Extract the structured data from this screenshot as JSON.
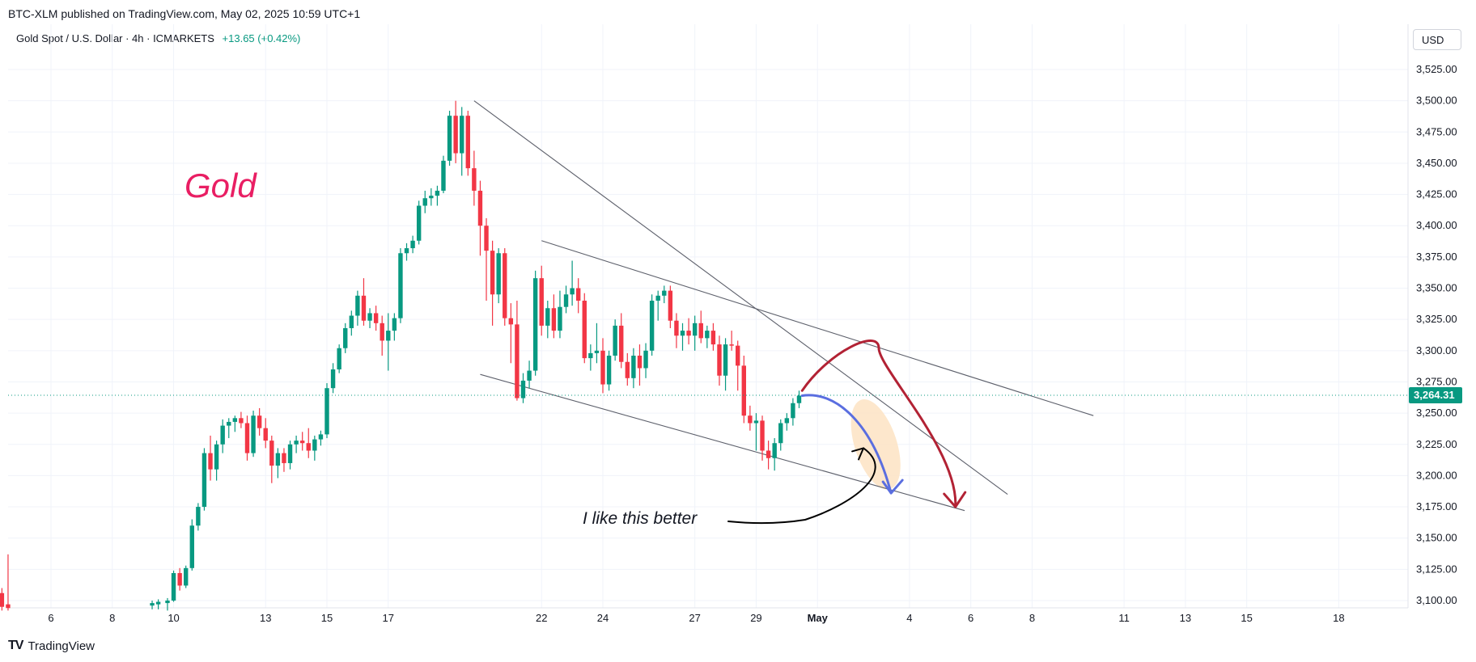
{
  "header": {
    "publisher": "BTC-XLM published on TradingView.com, May 02, 2025 10:59 UTC+1"
  },
  "legend": {
    "symbol": "Gold Spot / U.S. Dollar · 4h · ICMARKETS",
    "change": "+13.65 (+0.42%)"
  },
  "currency_button": "USD",
  "brand": {
    "logo": "TV",
    "name": "TradingView"
  },
  "colors": {
    "up": "#089981",
    "down": "#f23645",
    "trendline": "#5d606b",
    "gold_text": "#e91e63",
    "blue_arrow": "#5a6ee0",
    "red_arrow": "#b22234",
    "highlight": "#fde3c3"
  },
  "annotations": {
    "gold": "Gold",
    "note": "I like this better"
  },
  "chart_data": {
    "type": "candlestick",
    "timeframe": "4h",
    "last_price": 3264.31,
    "last_price_label": "3,264.31",
    "y_ticks": [
      "3,525.00",
      "3,500.00",
      "3,475.00",
      "3,450.00",
      "3,425.00",
      "3,400.00",
      "3,375.00",
      "3,350.00",
      "3,325.00",
      "3,300.00",
      "3,275.00",
      "3,250.00",
      "3,225.00",
      "3,200.00",
      "3,175.00",
      "3,150.00",
      "3,125.00",
      "3,100.00"
    ],
    "y_tick_values": [
      3525,
      3500,
      3475,
      3450,
      3425,
      3400,
      3375,
      3350,
      3325,
      3300,
      3275,
      3250,
      3225,
      3200,
      3175,
      3150,
      3125,
      3100
    ],
    "ylim": [
      3093,
      3538
    ],
    "x_ticks": [
      {
        "label": "6",
        "day": 6
      },
      {
        "label": "8",
        "day": 8
      },
      {
        "label": "10",
        "day": 10
      },
      {
        "label": "13",
        "day": 13
      },
      {
        "label": "15",
        "day": 15
      },
      {
        "label": "17",
        "day": 17
      },
      {
        "label": "22",
        "day": 22
      },
      {
        "label": "24",
        "day": 24
      },
      {
        "label": "27",
        "day": 27
      },
      {
        "label": "29",
        "day": 29
      },
      {
        "label": "May",
        "day": 31
      },
      {
        "label": "4",
        "day": 34
      },
      {
        "label": "6",
        "day": 36
      },
      {
        "label": "8",
        "day": 38
      },
      {
        "label": "11",
        "day": 41
      },
      {
        "label": "13",
        "day": 43
      },
      {
        "label": "15",
        "day": 45
      },
      {
        "label": "18",
        "day": 48
      }
    ],
    "candles": [
      {
        "day": 4.0,
        "o": 3108,
        "h": 3112,
        "l": 3098,
        "c": 3104
      },
      {
        "day": 4.2,
        "o": 3104,
        "h": 3109,
        "l": 3098,
        "c": 3106
      },
      {
        "day": 4.4,
        "o": 3106,
        "h": 3110,
        "l": 3092,
        "c": 3095
      },
      {
        "day": 4.6,
        "o": 3097,
        "h": 3137,
        "l": 3092,
        "c": 3094
      },
      {
        "day": 9.3,
        "o": 3096,
        "h": 3100,
        "l": 3093,
        "c": 3098
      },
      {
        "day": 9.5,
        "o": 3097,
        "h": 3101,
        "l": 3093,
        "c": 3099
      },
      {
        "day": 9.8,
        "o": 3098,
        "h": 3102,
        "l": 3092,
        "c": 3100
      },
      {
        "day": 10.0,
        "o": 3100,
        "h": 3124,
        "l": 3099,
        "c": 3122
      },
      {
        "day": 10.2,
        "o": 3122,
        "h": 3126,
        "l": 3108,
        "c": 3112
      },
      {
        "day": 10.4,
        "o": 3112,
        "h": 3128,
        "l": 3110,
        "c": 3126
      },
      {
        "day": 10.6,
        "o": 3126,
        "h": 3165,
        "l": 3124,
        "c": 3160
      },
      {
        "day": 10.8,
        "o": 3160,
        "h": 3178,
        "l": 3156,
        "c": 3175
      },
      {
        "day": 11.0,
        "o": 3175,
        "h": 3222,
        "l": 3172,
        "c": 3218
      },
      {
        "day": 11.2,
        "o": 3218,
        "h": 3232,
        "l": 3196,
        "c": 3205
      },
      {
        "day": 11.4,
        "o": 3205,
        "h": 3228,
        "l": 3196,
        "c": 3225
      },
      {
        "day": 11.6,
        "o": 3225,
        "h": 3245,
        "l": 3218,
        "c": 3240
      },
      {
        "day": 11.8,
        "o": 3240,
        "h": 3246,
        "l": 3230,
        "c": 3243
      },
      {
        "day": 12.0,
        "o": 3243,
        "h": 3248,
        "l": 3235,
        "c": 3246
      },
      {
        "day": 12.2,
        "o": 3246,
        "h": 3251,
        "l": 3238,
        "c": 3242
      },
      {
        "day": 12.4,
        "o": 3242,
        "h": 3248,
        "l": 3212,
        "c": 3218
      },
      {
        "day": 12.6,
        "o": 3218,
        "h": 3252,
        "l": 3215,
        "c": 3248
      },
      {
        "day": 12.8,
        "o": 3248,
        "h": 3254,
        "l": 3232,
        "c": 3238
      },
      {
        "day": 13.0,
        "o": 3238,
        "h": 3246,
        "l": 3222,
        "c": 3228
      },
      {
        "day": 13.2,
        "o": 3228,
        "h": 3232,
        "l": 3194,
        "c": 3208
      },
      {
        "day": 13.4,
        "o": 3208,
        "h": 3222,
        "l": 3198,
        "c": 3218
      },
      {
        "day": 13.6,
        "o": 3218,
        "h": 3222,
        "l": 3203,
        "c": 3210
      },
      {
        "day": 13.8,
        "o": 3210,
        "h": 3228,
        "l": 3205,
        "c": 3225
      },
      {
        "day": 14.0,
        "o": 3225,
        "h": 3232,
        "l": 3218,
        "c": 3228
      },
      {
        "day": 14.2,
        "o": 3228,
        "h": 3235,
        "l": 3220,
        "c": 3226
      },
      {
        "day": 14.4,
        "o": 3226,
        "h": 3238,
        "l": 3214,
        "c": 3220
      },
      {
        "day": 14.6,
        "o": 3220,
        "h": 3232,
        "l": 3212,
        "c": 3229
      },
      {
        "day": 14.8,
        "o": 3229,
        "h": 3236,
        "l": 3224,
        "c": 3233
      },
      {
        "day": 15.0,
        "o": 3233,
        "h": 3274,
        "l": 3230,
        "c": 3270
      },
      {
        "day": 15.2,
        "o": 3270,
        "h": 3290,
        "l": 3266,
        "c": 3285
      },
      {
        "day": 15.4,
        "o": 3285,
        "h": 3305,
        "l": 3282,
        "c": 3302
      },
      {
        "day": 15.6,
        "o": 3302,
        "h": 3322,
        "l": 3298,
        "c": 3318
      },
      {
        "day": 15.8,
        "o": 3318,
        "h": 3332,
        "l": 3312,
        "c": 3328
      },
      {
        "day": 16.0,
        "o": 3328,
        "h": 3348,
        "l": 3320,
        "c": 3344
      },
      {
        "day": 16.2,
        "o": 3344,
        "h": 3358,
        "l": 3320,
        "c": 3324
      },
      {
        "day": 16.4,
        "o": 3324,
        "h": 3334,
        "l": 3318,
        "c": 3330
      },
      {
        "day": 16.6,
        "o": 3330,
        "h": 3336,
        "l": 3316,
        "c": 3322
      },
      {
        "day": 16.8,
        "o": 3322,
        "h": 3328,
        "l": 3296,
        "c": 3308
      },
      {
        "day": 17.0,
        "o": 3308,
        "h": 3330,
        "l": 3284,
        "c": 3316
      },
      {
        "day": 17.2,
        "o": 3316,
        "h": 3330,
        "l": 3308,
        "c": 3326
      },
      {
        "day": 17.4,
        "o": 3326,
        "h": 3382,
        "l": 3322,
        "c": 3378
      },
      {
        "day": 17.6,
        "o": 3378,
        "h": 3386,
        "l": 3372,
        "c": 3382
      },
      {
        "day": 17.8,
        "o": 3382,
        "h": 3392,
        "l": 3378,
        "c": 3388
      },
      {
        "day": 18.0,
        "o": 3388,
        "h": 3420,
        "l": 3385,
        "c": 3416
      },
      {
        "day": 18.2,
        "o": 3416,
        "h": 3428,
        "l": 3410,
        "c": 3422
      },
      {
        "day": 18.4,
        "o": 3422,
        "h": 3430,
        "l": 3416,
        "c": 3424
      },
      {
        "day": 18.6,
        "o": 3424,
        "h": 3432,
        "l": 3416,
        "c": 3428
      },
      {
        "day": 18.8,
        "o": 3428,
        "h": 3456,
        "l": 3426,
        "c": 3452
      },
      {
        "day": 19.0,
        "o": 3452,
        "h": 3492,
        "l": 3448,
        "c": 3488
      },
      {
        "day": 19.2,
        "o": 3488,
        "h": 3500,
        "l": 3450,
        "c": 3458
      },
      {
        "day": 19.4,
        "o": 3458,
        "h": 3495,
        "l": 3440,
        "c": 3488
      },
      {
        "day": 19.6,
        "o": 3488,
        "h": 3492,
        "l": 3440,
        "c": 3446
      },
      {
        "day": 19.8,
        "o": 3446,
        "h": 3460,
        "l": 3416,
        "c": 3428
      },
      {
        "day": 20.0,
        "o": 3428,
        "h": 3436,
        "l": 3376,
        "c": 3400
      },
      {
        "day": 20.2,
        "o": 3400,
        "h": 3406,
        "l": 3340,
        "c": 3380
      },
      {
        "day": 20.4,
        "o": 3380,
        "h": 3388,
        "l": 3320,
        "c": 3345
      },
      {
        "day": 20.6,
        "o": 3345,
        "h": 3382,
        "l": 3338,
        "c": 3378
      },
      {
        "day": 20.8,
        "o": 3378,
        "h": 3382,
        "l": 3320,
        "c": 3326
      },
      {
        "day": 21.0,
        "o": 3326,
        "h": 3338,
        "l": 3290,
        "c": 3321
      },
      {
        "day": 21.2,
        "o": 3321,
        "h": 3340,
        "l": 3260,
        "c": 3262
      },
      {
        "day": 21.4,
        "o": 3262,
        "h": 3282,
        "l": 3258,
        "c": 3276
      },
      {
        "day": 21.6,
        "o": 3276,
        "h": 3292,
        "l": 3270,
        "c": 3284
      },
      {
        "day": 21.8,
        "o": 3284,
        "h": 3364,
        "l": 3280,
        "c": 3358
      },
      {
        "day": 22.0,
        "o": 3358,
        "h": 3368,
        "l": 3312,
        "c": 3320
      },
      {
        "day": 22.2,
        "o": 3320,
        "h": 3340,
        "l": 3310,
        "c": 3334
      },
      {
        "day": 22.4,
        "o": 3334,
        "h": 3345,
        "l": 3310,
        "c": 3316
      },
      {
        "day": 22.6,
        "o": 3316,
        "h": 3348,
        "l": 3310,
        "c": 3335
      },
      {
        "day": 22.8,
        "o": 3335,
        "h": 3352,
        "l": 3330,
        "c": 3345
      },
      {
        "day": 23.0,
        "o": 3345,
        "h": 3372,
        "l": 3336,
        "c": 3350
      },
      {
        "day": 23.2,
        "o": 3350,
        "h": 3358,
        "l": 3330,
        "c": 3340
      },
      {
        "day": 23.4,
        "o": 3340,
        "h": 3346,
        "l": 3290,
        "c": 3294
      },
      {
        "day": 23.6,
        "o": 3294,
        "h": 3305,
        "l": 3284,
        "c": 3298
      },
      {
        "day": 23.8,
        "o": 3298,
        "h": 3322,
        "l": 3290,
        "c": 3300
      },
      {
        "day": 24.0,
        "o": 3300,
        "h": 3310,
        "l": 3266,
        "c": 3273
      },
      {
        "day": 24.2,
        "o": 3273,
        "h": 3300,
        "l": 3268,
        "c": 3296
      },
      {
        "day": 24.4,
        "o": 3296,
        "h": 3325,
        "l": 3292,
        "c": 3320
      },
      {
        "day": 24.6,
        "o": 3320,
        "h": 3330,
        "l": 3286,
        "c": 3291
      },
      {
        "day": 24.8,
        "o": 3291,
        "h": 3298,
        "l": 3272,
        "c": 3278
      },
      {
        "day": 25.0,
        "o": 3278,
        "h": 3302,
        "l": 3270,
        "c": 3296
      },
      {
        "day": 25.2,
        "o": 3296,
        "h": 3305,
        "l": 3272,
        "c": 3286
      },
      {
        "day": 25.4,
        "o": 3286,
        "h": 3306,
        "l": 3278,
        "c": 3300
      },
      {
        "day": 25.6,
        "o": 3300,
        "h": 3345,
        "l": 3296,
        "c": 3340
      },
      {
        "day": 25.8,
        "o": 3340,
        "h": 3348,
        "l": 3324,
        "c": 3344
      },
      {
        "day": 26.0,
        "o": 3344,
        "h": 3352,
        "l": 3338,
        "c": 3348
      },
      {
        "day": 26.2,
        "o": 3348,
        "h": 3352,
        "l": 3318,
        "c": 3324
      },
      {
        "day": 26.4,
        "o": 3324,
        "h": 3330,
        "l": 3302,
        "c": 3312
      },
      {
        "day": 26.6,
        "o": 3312,
        "h": 3322,
        "l": 3300,
        "c": 3316
      },
      {
        "day": 26.8,
        "o": 3316,
        "h": 3326,
        "l": 3305,
        "c": 3312
      },
      {
        "day": 27.0,
        "o": 3312,
        "h": 3328,
        "l": 3300,
        "c": 3322
      },
      {
        "day": 27.2,
        "o": 3322,
        "h": 3332,
        "l": 3306,
        "c": 3310
      },
      {
        "day": 27.4,
        "o": 3310,
        "h": 3320,
        "l": 3302,
        "c": 3316
      },
      {
        "day": 27.6,
        "o": 3316,
        "h": 3322,
        "l": 3300,
        "c": 3305
      },
      {
        "day": 27.8,
        "o": 3305,
        "h": 3312,
        "l": 3272,
        "c": 3280
      },
      {
        "day": 28.0,
        "o": 3280,
        "h": 3310,
        "l": 3268,
        "c": 3305
      },
      {
        "day": 28.2,
        "o": 3305,
        "h": 3316,
        "l": 3300,
        "c": 3304
      },
      {
        "day": 28.4,
        "o": 3304,
        "h": 3308,
        "l": 3268,
        "c": 3288
      },
      {
        "day": 28.6,
        "o": 3288,
        "h": 3296,
        "l": 3242,
        "c": 3248
      },
      {
        "day": 28.8,
        "o": 3248,
        "h": 3256,
        "l": 3236,
        "c": 3242
      },
      {
        "day": 29.0,
        "o": 3242,
        "h": 3250,
        "l": 3220,
        "c": 3244
      },
      {
        "day": 29.2,
        "o": 3244,
        "h": 3248,
        "l": 3212,
        "c": 3220
      },
      {
        "day": 29.4,
        "o": 3220,
        "h": 3228,
        "l": 3205,
        "c": 3214
      },
      {
        "day": 29.6,
        "o": 3214,
        "h": 3230,
        "l": 3204,
        "c": 3226
      },
      {
        "day": 29.8,
        "o": 3226,
        "h": 3245,
        "l": 3220,
        "c": 3242
      },
      {
        "day": 30.0,
        "o": 3242,
        "h": 3250,
        "l": 3236,
        "c": 3246
      },
      {
        "day": 30.2,
        "o": 3246,
        "h": 3262,
        "l": 3240,
        "c": 3258
      },
      {
        "day": 30.4,
        "o": 3258,
        "h": 3268,
        "l": 3254,
        "c": 3264
      }
    ],
    "trendlines": [
      {
        "name": "upper-resistance",
        "p1": {
          "day": 19.8,
          "price": 3500
        },
        "p2": {
          "day": 37.2,
          "price": 3185
        }
      },
      {
        "name": "channel-upper",
        "p1": {
          "day": 22.0,
          "price": 3388
        },
        "p2": {
          "day": 40.0,
          "price": 3248
        }
      },
      {
        "name": "channel-lower",
        "p1": {
          "day": 20.0,
          "price": 3281
        },
        "p2": {
          "day": 35.8,
          "price": 3172
        }
      }
    ]
  }
}
